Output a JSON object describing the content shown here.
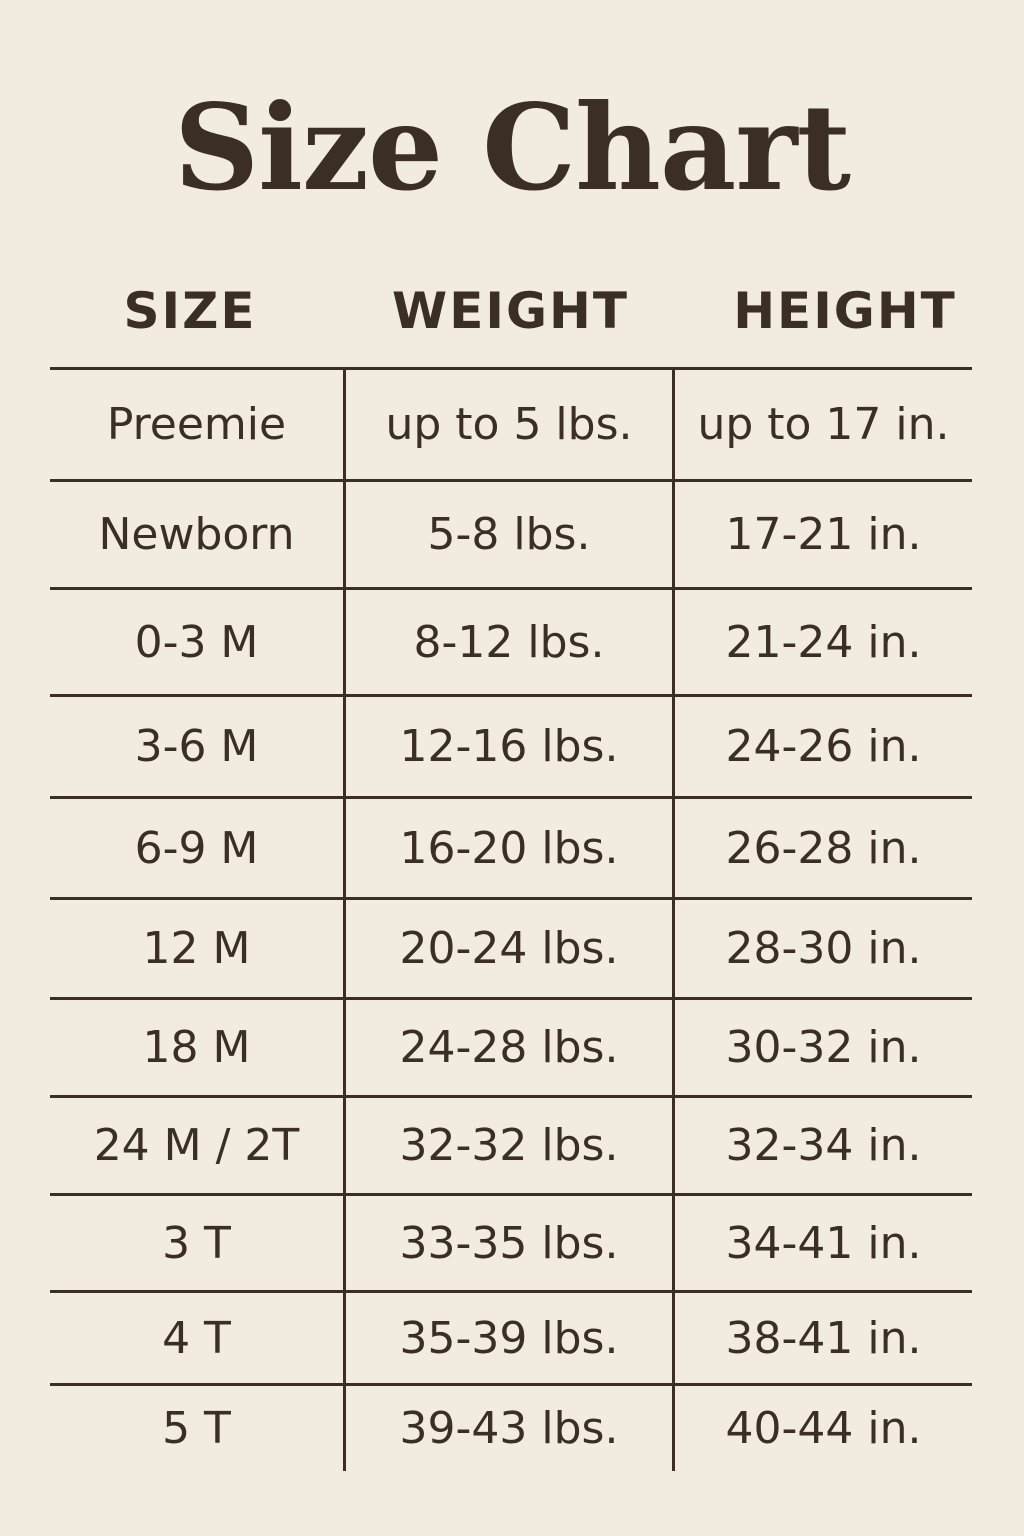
{
  "title": "Size Chart",
  "headers": [
    "SIZE",
    "WEIGHT",
    "HEIGHT"
  ],
  "rows": [
    [
      "Preemie",
      "up to 5 lbs.",
      "up to 17 in."
    ],
    [
      "Newborn",
      "5-8 lbs.",
      "17-21 in."
    ],
    [
      "0-3 M",
      "8-12 lbs.",
      "21-24 in."
    ],
    [
      "3-6 M",
      "12-16 lbs.",
      "24-26 in."
    ],
    [
      "6-9 M",
      "16-20 lbs.",
      "26-28 in."
    ],
    [
      "12 M",
      "20-24 lbs.",
      "28-30 in."
    ],
    [
      "18 M",
      "24-28 lbs.",
      "30-32 in."
    ],
    [
      "24 M / 2T",
      "32-32 lbs.",
      "32-34 in."
    ],
    [
      "3 T",
      "33-35 lbs.",
      "34-41 in."
    ],
    [
      "4 T",
      "35-39 lbs.",
      "38-41 in."
    ],
    [
      "5 T",
      "39-43 lbs.",
      "40-44 in."
    ]
  ],
  "colors": {
    "background": "#f2ebe0",
    "text": "#3a2e25"
  }
}
